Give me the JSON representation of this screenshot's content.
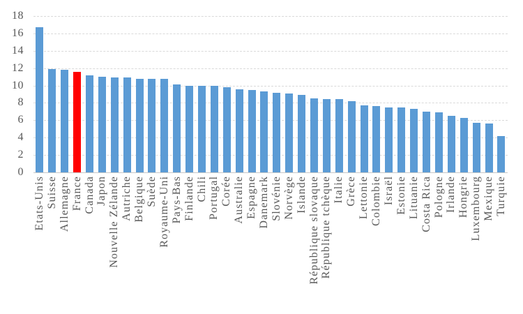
{
  "chart_data": {
    "type": "bar",
    "title": "",
    "xlabel": "",
    "ylabel": "",
    "categories": [
      "Etats-Unis",
      "Suisse",
      "Allemagne",
      "France",
      "Canada",
      "Japon",
      "Nouvelle Zélande",
      "Autriche",
      "Belgique",
      "Suède",
      "Royaume-Uni",
      "Pays-Bas",
      "Finlande",
      "Chili",
      "Portugal",
      "Corée",
      "Australie",
      "Espagne",
      "Danemark",
      "Slovénie",
      "Norvège",
      "Islande",
      "République slovaque",
      "République tchèque",
      "Italie",
      "Grèce",
      "Lettonie",
      "Colombie",
      "Israël",
      "Estonie",
      "Lituanie",
      "Costa Rica",
      "Pologne",
      "Irlande",
      "Hongrie",
      "Luxembourg",
      "Mexique",
      "Turquie"
    ],
    "values": [
      16.7,
      11.9,
      11.8,
      11.6,
      11.2,
      11.0,
      10.9,
      10.9,
      10.8,
      10.8,
      10.8,
      10.1,
      10.0,
      10.0,
      10.0,
      9.8,
      9.6,
      9.5,
      9.3,
      9.2,
      9.1,
      8.9,
      8.5,
      8.4,
      8.4,
      8.2,
      7.7,
      7.6,
      7.5,
      7.5,
      7.3,
      7.0,
      6.9,
      6.5,
      6.3,
      5.7,
      5.6,
      4.2
    ],
    "highlight_category": "France",
    "bar_color": "#5b9bd5",
    "highlight_color": "#ff0000",
    "label_color": "#595959",
    "gridline_color": "#d9d9d9",
    "axis_line_color": "#c8c8c8",
    "ylim": [
      0,
      18
    ],
    "ytick_step": 2,
    "ytick_labels": [
      "18",
      "16",
      "14",
      "12",
      "10",
      "8",
      "6",
      "4",
      "2",
      "0"
    ],
    "grid": "horizontal-dashed",
    "legend": "none"
  }
}
